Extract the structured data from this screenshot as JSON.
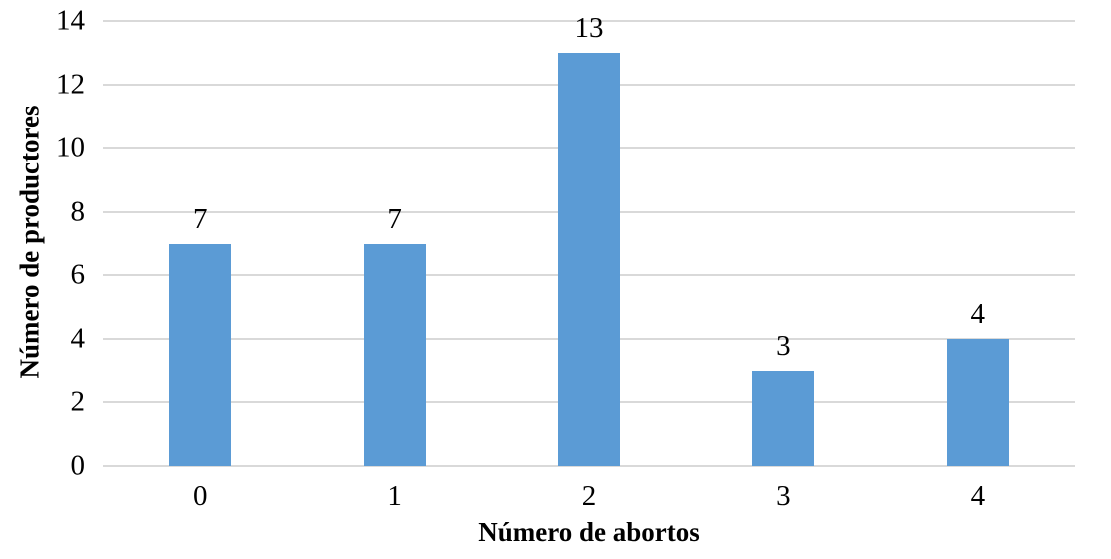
{
  "chart_data": {
    "type": "bar",
    "title": "",
    "categories": [
      "0",
      "1",
      "2",
      "3",
      "4"
    ],
    "values": [
      7,
      7,
      13,
      3,
      4
    ],
    "data_labels": [
      "7",
      "7",
      "13",
      "3",
      "4"
    ],
    "xlabel": "Número de abortos",
    "ylabel": "Número de productores",
    "ylim": [
      0,
      14
    ],
    "yticks": [
      0,
      2,
      4,
      6,
      8,
      10,
      12,
      14
    ],
    "grid": "horizontal-only",
    "legend": "none",
    "bar_color": "#5B9BD5",
    "gridline_color": "#D9D9D9",
    "text_color": "#000000"
  }
}
